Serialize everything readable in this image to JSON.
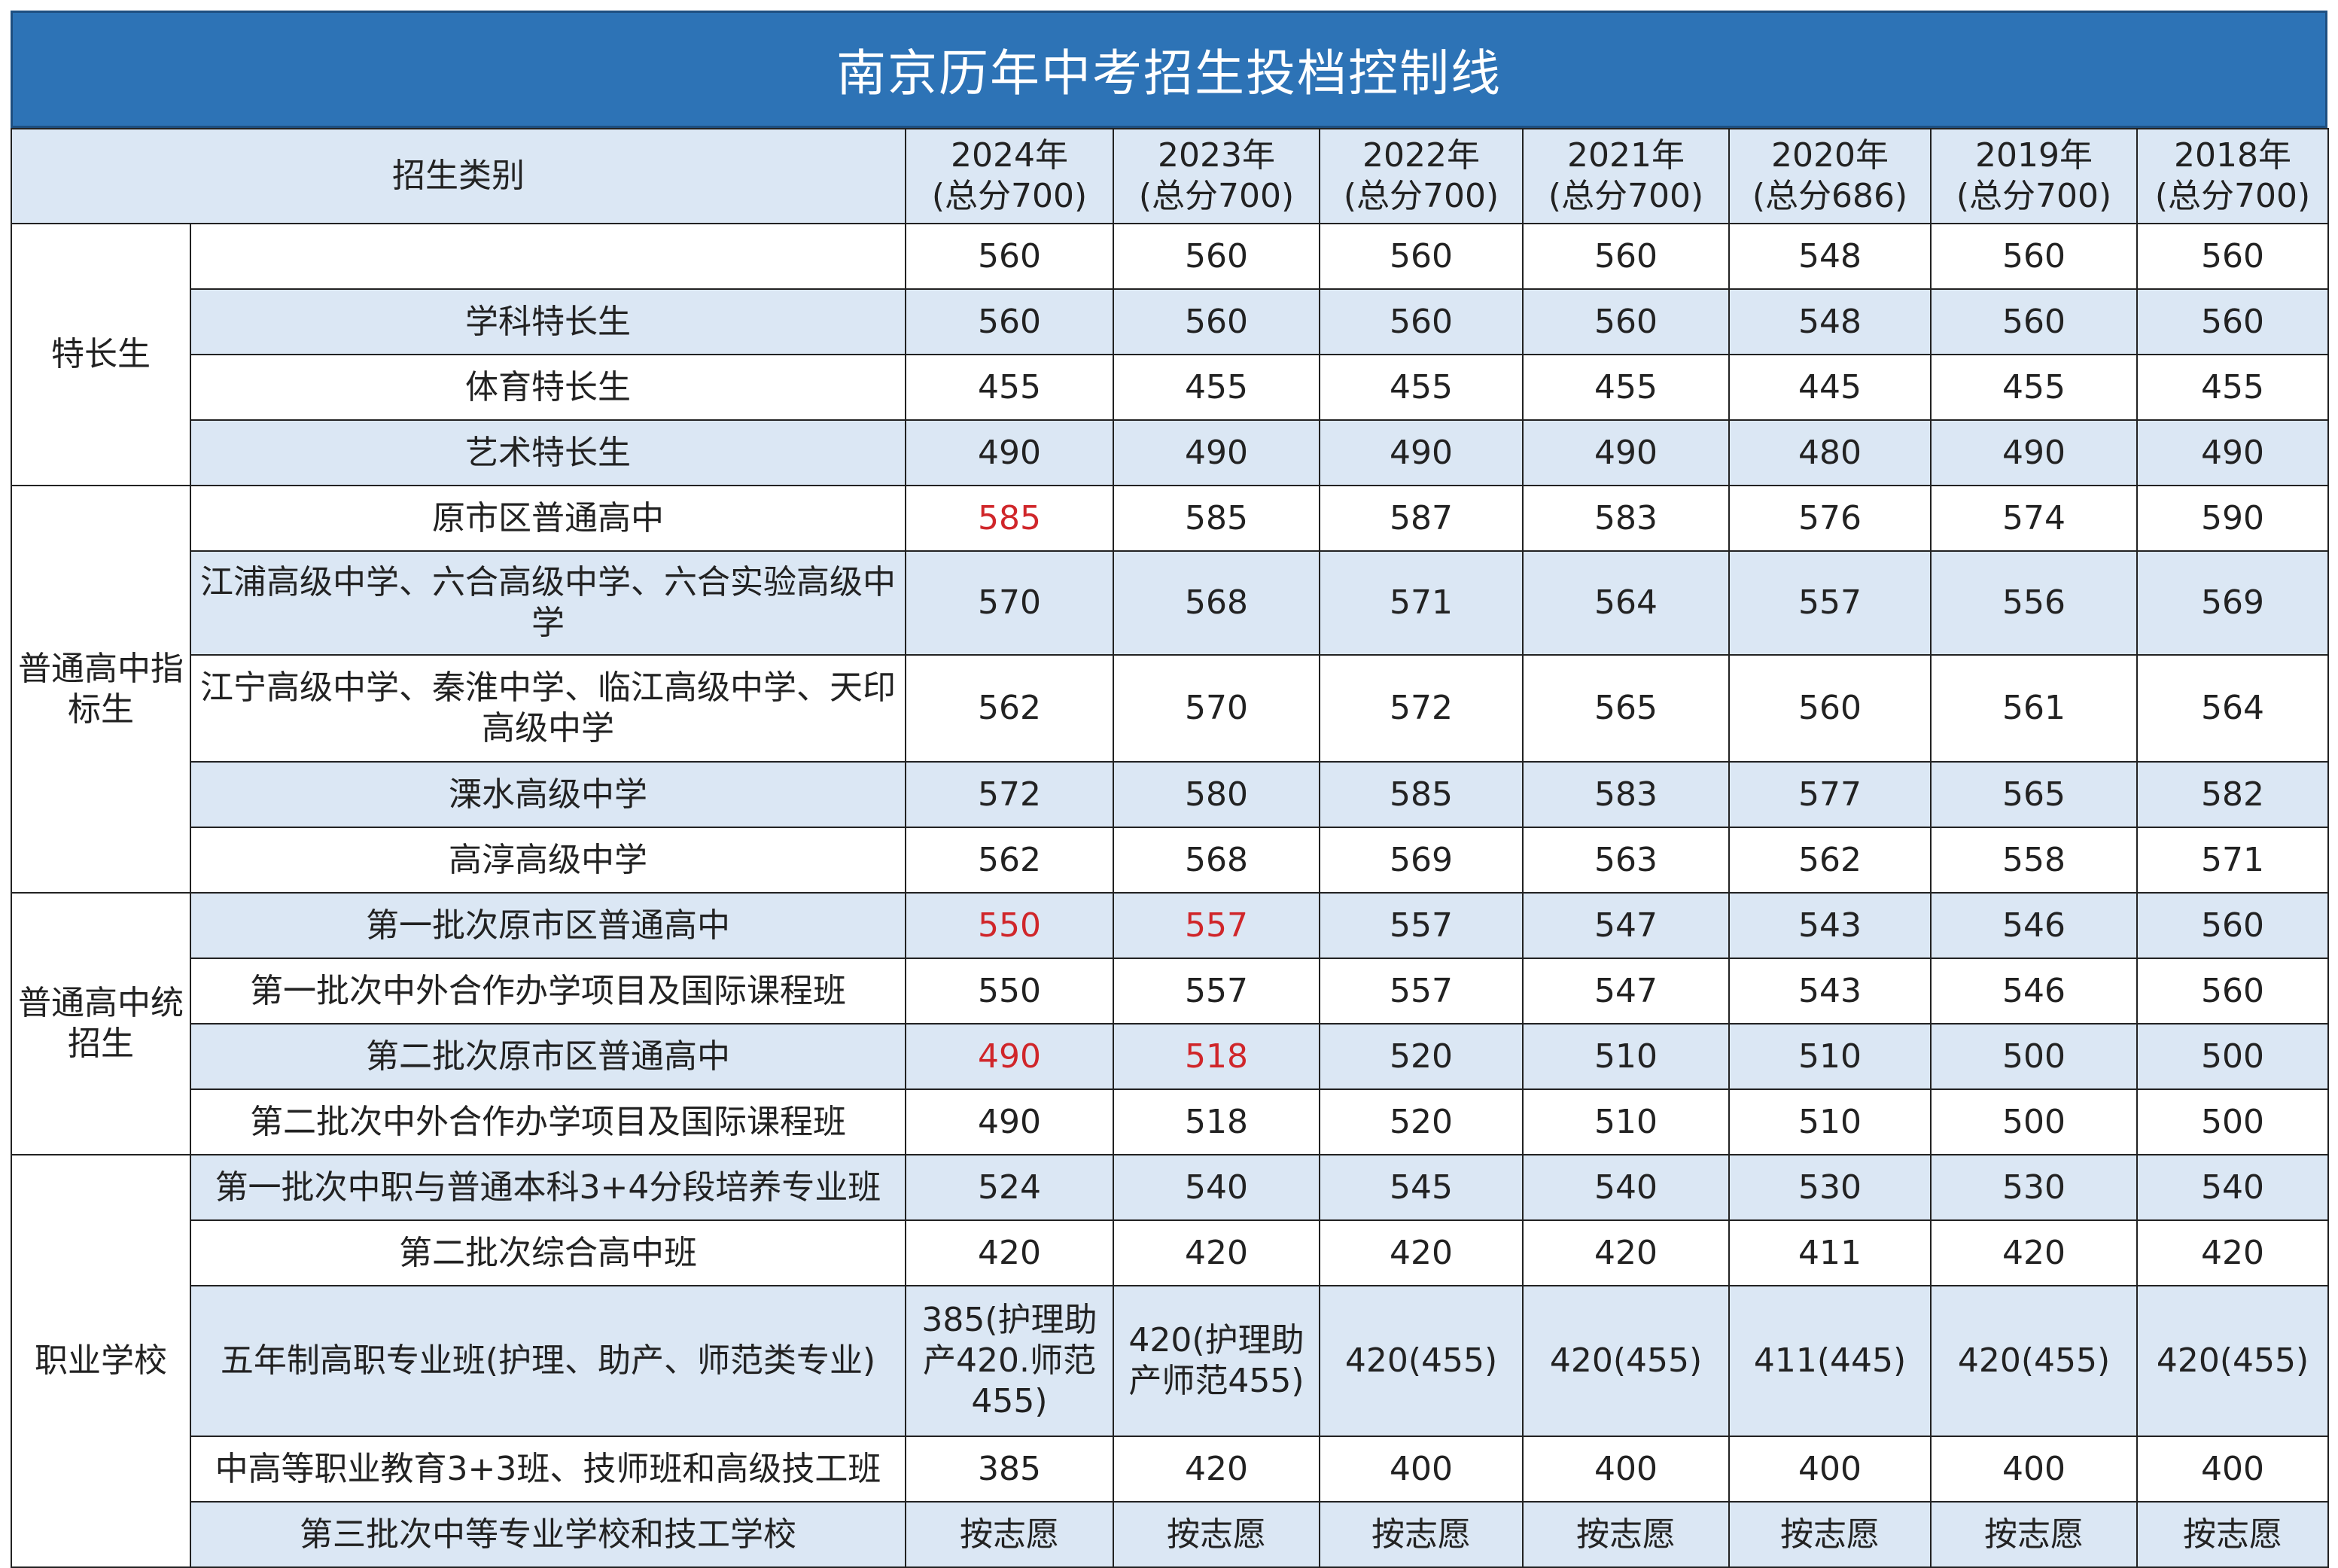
{
  "title": "南京历年中考招生投档控制线",
  "header": {
    "category_label": "招生类别",
    "years": [
      {
        "year": "2024年",
        "total": "(总分700)"
      },
      {
        "year": "2023年",
        "total": "(总分700)"
      },
      {
        "year": "2022年",
        "total": "(总分700)"
      },
      {
        "year": "2021年",
        "total": "(总分700)"
      },
      {
        "year": "2020年",
        "total": "(总分686)"
      },
      {
        "year": "2019年",
        "total": "(总分700)"
      },
      {
        "year": "2018年",
        "total": "(总分700)"
      }
    ]
  },
  "colors": {
    "title_bg": "#2d73b6",
    "alt_row_bg": "#dbe7f4",
    "highlight": "#d0262a"
  },
  "groups": [
    {
      "name": "特长生",
      "rows": [
        {
          "label": "",
          "values": [
            "560",
            "560",
            "560",
            "560",
            "548",
            "560",
            "560"
          ]
        },
        {
          "label": "学科特长生",
          "values": [
            "560",
            "560",
            "560",
            "560",
            "548",
            "560",
            "560"
          ]
        },
        {
          "label": "体育特长生",
          "values": [
            "455",
            "455",
            "455",
            "455",
            "445",
            "455",
            "455"
          ]
        },
        {
          "label": "艺术特长生",
          "values": [
            "490",
            "490",
            "490",
            "490",
            "480",
            "490",
            "490"
          ]
        }
      ]
    },
    {
      "name": "普通高中指标生",
      "rows": [
        {
          "label": "原市区普通高中",
          "values": [
            "585",
            "585",
            "587",
            "583",
            "576",
            "574",
            "590"
          ]
        },
        {
          "label": "江浦高级中学、六合高级中学、六合实验高级中学",
          "values": [
            "570",
            "568",
            "571",
            "564",
            "557",
            "556",
            "569"
          ]
        },
        {
          "label": "江宁高级中学、秦淮中学、临江高级中学、天印高级中学",
          "values": [
            "562",
            "570",
            "572",
            "565",
            "560",
            "561",
            "564"
          ]
        },
        {
          "label": "溧水高级中学",
          "values": [
            "572",
            "580",
            "585",
            "583",
            "577",
            "565",
            "582"
          ]
        },
        {
          "label": "高淳高级中学",
          "values": [
            "562",
            "568",
            "569",
            "563",
            "562",
            "558",
            "571"
          ]
        }
      ]
    },
    {
      "name": "普通高中统招生",
      "rows": [
        {
          "label": "第一批次原市区普通高中",
          "values": [
            "550",
            "557",
            "557",
            "547",
            "543",
            "546",
            "560"
          ]
        },
        {
          "label": "第一批次中外合作办学项目及国际课程班",
          "values": [
            "550",
            "557",
            "557",
            "547",
            "543",
            "546",
            "560"
          ]
        },
        {
          "label": "第二批次原市区普通高中",
          "values": [
            "490",
            "518",
            "520",
            "510",
            "510",
            "500",
            "500"
          ]
        },
        {
          "label": "第二批次中外合作办学项目及国际课程班",
          "values": [
            "490",
            "518",
            "520",
            "510",
            "510",
            "500",
            "500"
          ]
        }
      ]
    },
    {
      "name": "职业学校",
      "rows": [
        {
          "label": "第一批次中职与普通本科3+4分段培养专业班",
          "values": [
            "524",
            "540",
            "545",
            "540",
            "530",
            "530",
            "540"
          ]
        },
        {
          "label": "第二批次综合高中班",
          "values": [
            "420",
            "420",
            "420",
            "420",
            "411",
            "420",
            "420"
          ]
        },
        {
          "label": "五年制高职专业班(护理、助产、师范类专业)",
          "values": [
            "385(护理助产420.师范455)",
            "420(护理助产师范455)",
            "420(455)",
            "420(455)",
            "411(445)",
            "420(455)",
            "420(455)"
          ]
        },
        {
          "label": "中高等职业教育3+3班、技师班和高级技工班",
          "values": [
            "385",
            "420",
            "400",
            "400",
            "400",
            "400",
            "400"
          ]
        },
        {
          "label": "第三批次中等专业学校和技工学校",
          "values": [
            "按志愿",
            "按志愿",
            "按志愿",
            "按志愿",
            "按志愿",
            "按志愿",
            "按志愿"
          ]
        }
      ]
    }
  ]
}
